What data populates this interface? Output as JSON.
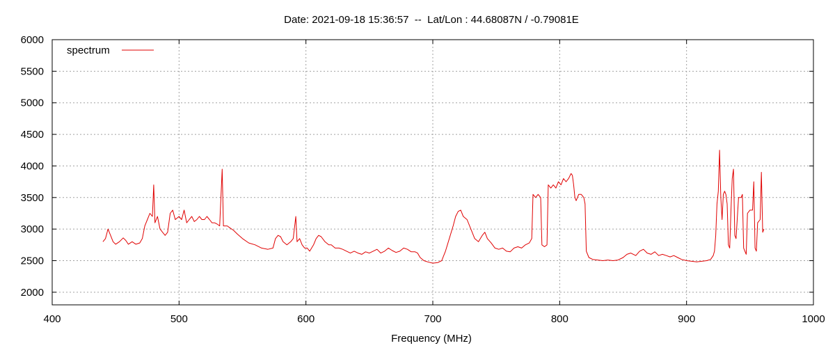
{
  "chart_data": {
    "type": "line",
    "title": "Date: 2021-09-18 15:36:57  --  Lat/Lon : 44.68087N / -0.79081E",
    "xlabel": "Frequency (MHz)",
    "ylabel": "",
    "xlim": [
      400,
      1000
    ],
    "ylim": [
      1800,
      6000
    ],
    "x_ticks": [
      400,
      500,
      600,
      700,
      800,
      900,
      1000
    ],
    "y_ticks": [
      2000,
      2500,
      3000,
      3500,
      4000,
      4500,
      5000,
      5500,
      6000
    ],
    "grid": true,
    "legend_position": "top-left",
    "series": [
      {
        "name": "spectrum",
        "color": "#e00000",
        "points": [
          [
            440,
            2800
          ],
          [
            442,
            2850
          ],
          [
            444,
            3000
          ],
          [
            446,
            2900
          ],
          [
            448,
            2800
          ],
          [
            450,
            2760
          ],
          [
            453,
            2800
          ],
          [
            456,
            2860
          ],
          [
            458,
            2820
          ],
          [
            460,
            2760
          ],
          [
            463,
            2800
          ],
          [
            466,
            2760
          ],
          [
            469,
            2780
          ],
          [
            471,
            2850
          ],
          [
            473,
            3050
          ],
          [
            475,
            3150
          ],
          [
            477,
            3250
          ],
          [
            479,
            3200
          ],
          [
            480,
            3700
          ],
          [
            481,
            3100
          ],
          [
            483,
            3200
          ],
          [
            485,
            3000
          ],
          [
            487,
            2950
          ],
          [
            489,
            2900
          ],
          [
            491,
            2950
          ],
          [
            493,
            3250
          ],
          [
            495,
            3300
          ],
          [
            497,
            3150
          ],
          [
            500,
            3200
          ],
          [
            502,
            3150
          ],
          [
            504,
            3300
          ],
          [
            506,
            3100
          ],
          [
            508,
            3150
          ],
          [
            510,
            3200
          ],
          [
            512,
            3120
          ],
          [
            514,
            3150
          ],
          [
            516,
            3200
          ],
          [
            518,
            3150
          ],
          [
            520,
            3150
          ],
          [
            522,
            3200
          ],
          [
            524,
            3150
          ],
          [
            526,
            3100
          ],
          [
            528,
            3100
          ],
          [
            530,
            3080
          ],
          [
            532,
            3050
          ],
          [
            534,
            3950
          ],
          [
            535,
            3050
          ],
          [
            538,
            3050
          ],
          [
            540,
            3020
          ],
          [
            543,
            2980
          ],
          [
            546,
            2920
          ],
          [
            550,
            2850
          ],
          [
            555,
            2780
          ],
          [
            560,
            2750
          ],
          [
            565,
            2700
          ],
          [
            570,
            2680
          ],
          [
            574,
            2700
          ],
          [
            576,
            2850
          ],
          [
            578,
            2900
          ],
          [
            580,
            2880
          ],
          [
            582,
            2800
          ],
          [
            585,
            2750
          ],
          [
            588,
            2800
          ],
          [
            590,
            2850
          ],
          [
            592,
            3200
          ],
          [
            593,
            2800
          ],
          [
            595,
            2850
          ],
          [
            597,
            2750
          ],
          [
            599,
            2700
          ],
          [
            601,
            2700
          ],
          [
            603,
            2650
          ],
          [
            606,
            2750
          ],
          [
            608,
            2850
          ],
          [
            610,
            2900
          ],
          [
            612,
            2880
          ],
          [
            615,
            2800
          ],
          [
            618,
            2750
          ],
          [
            620,
            2750
          ],
          [
            623,
            2700
          ],
          [
            626,
            2700
          ],
          [
            629,
            2680
          ],
          [
            632,
            2650
          ],
          [
            635,
            2620
          ],
          [
            638,
            2650
          ],
          [
            641,
            2620
          ],
          [
            644,
            2600
          ],
          [
            647,
            2640
          ],
          [
            650,
            2620
          ],
          [
            653,
            2650
          ],
          [
            656,
            2680
          ],
          [
            659,
            2620
          ],
          [
            662,
            2650
          ],
          [
            665,
            2700
          ],
          [
            668,
            2660
          ],
          [
            671,
            2630
          ],
          [
            674,
            2650
          ],
          [
            677,
            2700
          ],
          [
            680,
            2680
          ],
          [
            683,
            2640
          ],
          [
            686,
            2640
          ],
          [
            688,
            2620
          ],
          [
            690,
            2550
          ],
          [
            693,
            2500
          ],
          [
            696,
            2480
          ],
          [
            700,
            2460
          ],
          [
            704,
            2470
          ],
          [
            707,
            2500
          ],
          [
            710,
            2650
          ],
          [
            713,
            2850
          ],
          [
            716,
            3050
          ],
          [
            718,
            3200
          ],
          [
            720,
            3280
          ],
          [
            722,
            3300
          ],
          [
            724,
            3200
          ],
          [
            727,
            3150
          ],
          [
            730,
            3000
          ],
          [
            733,
            2850
          ],
          [
            736,
            2800
          ],
          [
            739,
            2900
          ],
          [
            741,
            2950
          ],
          [
            743,
            2850
          ],
          [
            746,
            2780
          ],
          [
            749,
            2700
          ],
          [
            752,
            2680
          ],
          [
            755,
            2700
          ],
          [
            758,
            2650
          ],
          [
            761,
            2640
          ],
          [
            764,
            2700
          ],
          [
            767,
            2720
          ],
          [
            770,
            2700
          ],
          [
            773,
            2750
          ],
          [
            776,
            2780
          ],
          [
            778,
            2850
          ],
          [
            779,
            3550
          ],
          [
            781,
            3500
          ],
          [
            783,
            3550
          ],
          [
            785,
            3500
          ],
          [
            786,
            2750
          ],
          [
            788,
            2720
          ],
          [
            790,
            2750
          ],
          [
            791,
            3700
          ],
          [
            793,
            3650
          ],
          [
            795,
            3700
          ],
          [
            797,
            3650
          ],
          [
            799,
            3750
          ],
          [
            801,
            3700
          ],
          [
            803,
            3800
          ],
          [
            805,
            3750
          ],
          [
            807,
            3800
          ],
          [
            809,
            3880
          ],
          [
            810,
            3850
          ],
          [
            811,
            3700
          ],
          [
            812,
            3500
          ],
          [
            813,
            3450
          ],
          [
            815,
            3550
          ],
          [
            817,
            3550
          ],
          [
            819,
            3500
          ],
          [
            820,
            3400
          ],
          [
            821,
            2650
          ],
          [
            823,
            2550
          ],
          [
            826,
            2520
          ],
          [
            830,
            2510
          ],
          [
            834,
            2500
          ],
          [
            838,
            2510
          ],
          [
            842,
            2500
          ],
          [
            846,
            2510
          ],
          [
            850,
            2550
          ],
          [
            853,
            2600
          ],
          [
            856,
            2620
          ],
          [
            860,
            2580
          ],
          [
            863,
            2650
          ],
          [
            866,
            2680
          ],
          [
            869,
            2620
          ],
          [
            872,
            2600
          ],
          [
            875,
            2640
          ],
          [
            878,
            2580
          ],
          [
            881,
            2600
          ],
          [
            884,
            2580
          ],
          [
            887,
            2560
          ],
          [
            890,
            2580
          ],
          [
            893,
            2550
          ],
          [
            896,
            2520
          ],
          [
            900,
            2500
          ],
          [
            904,
            2490
          ],
          [
            908,
            2480
          ],
          [
            912,
            2490
          ],
          [
            916,
            2500
          ],
          [
            919,
            2520
          ],
          [
            921,
            2580
          ],
          [
            922,
            2650
          ],
          [
            923,
            2900
          ],
          [
            924,
            3400
          ],
          [
            925,
            3600
          ],
          [
            926,
            4250
          ],
          [
            927,
            3500
          ],
          [
            928,
            3150
          ],
          [
            929,
            3550
          ],
          [
            930,
            3600
          ],
          [
            931,
            3550
          ],
          [
            932,
            3400
          ],
          [
            933,
            2750
          ],
          [
            934,
            2700
          ],
          [
            935,
            3300
          ],
          [
            936,
            3800
          ],
          [
            937,
            3950
          ],
          [
            938,
            2900
          ],
          [
            939,
            2850
          ],
          [
            941,
            3500
          ],
          [
            943,
            3500
          ],
          [
            944,
            3550
          ],
          [
            945,
            2700
          ],
          [
            946,
            2650
          ],
          [
            947,
            2600
          ],
          [
            948,
            3250
          ],
          [
            950,
            3300
          ],
          [
            952,
            3300
          ],
          [
            953,
            3750
          ],
          [
            954,
            2700
          ],
          [
            955,
            2650
          ],
          [
            956,
            3100
          ],
          [
            958,
            3150
          ],
          [
            959,
            3900
          ],
          [
            960,
            2950
          ],
          [
            961,
            3000
          ]
        ]
      }
    ]
  }
}
